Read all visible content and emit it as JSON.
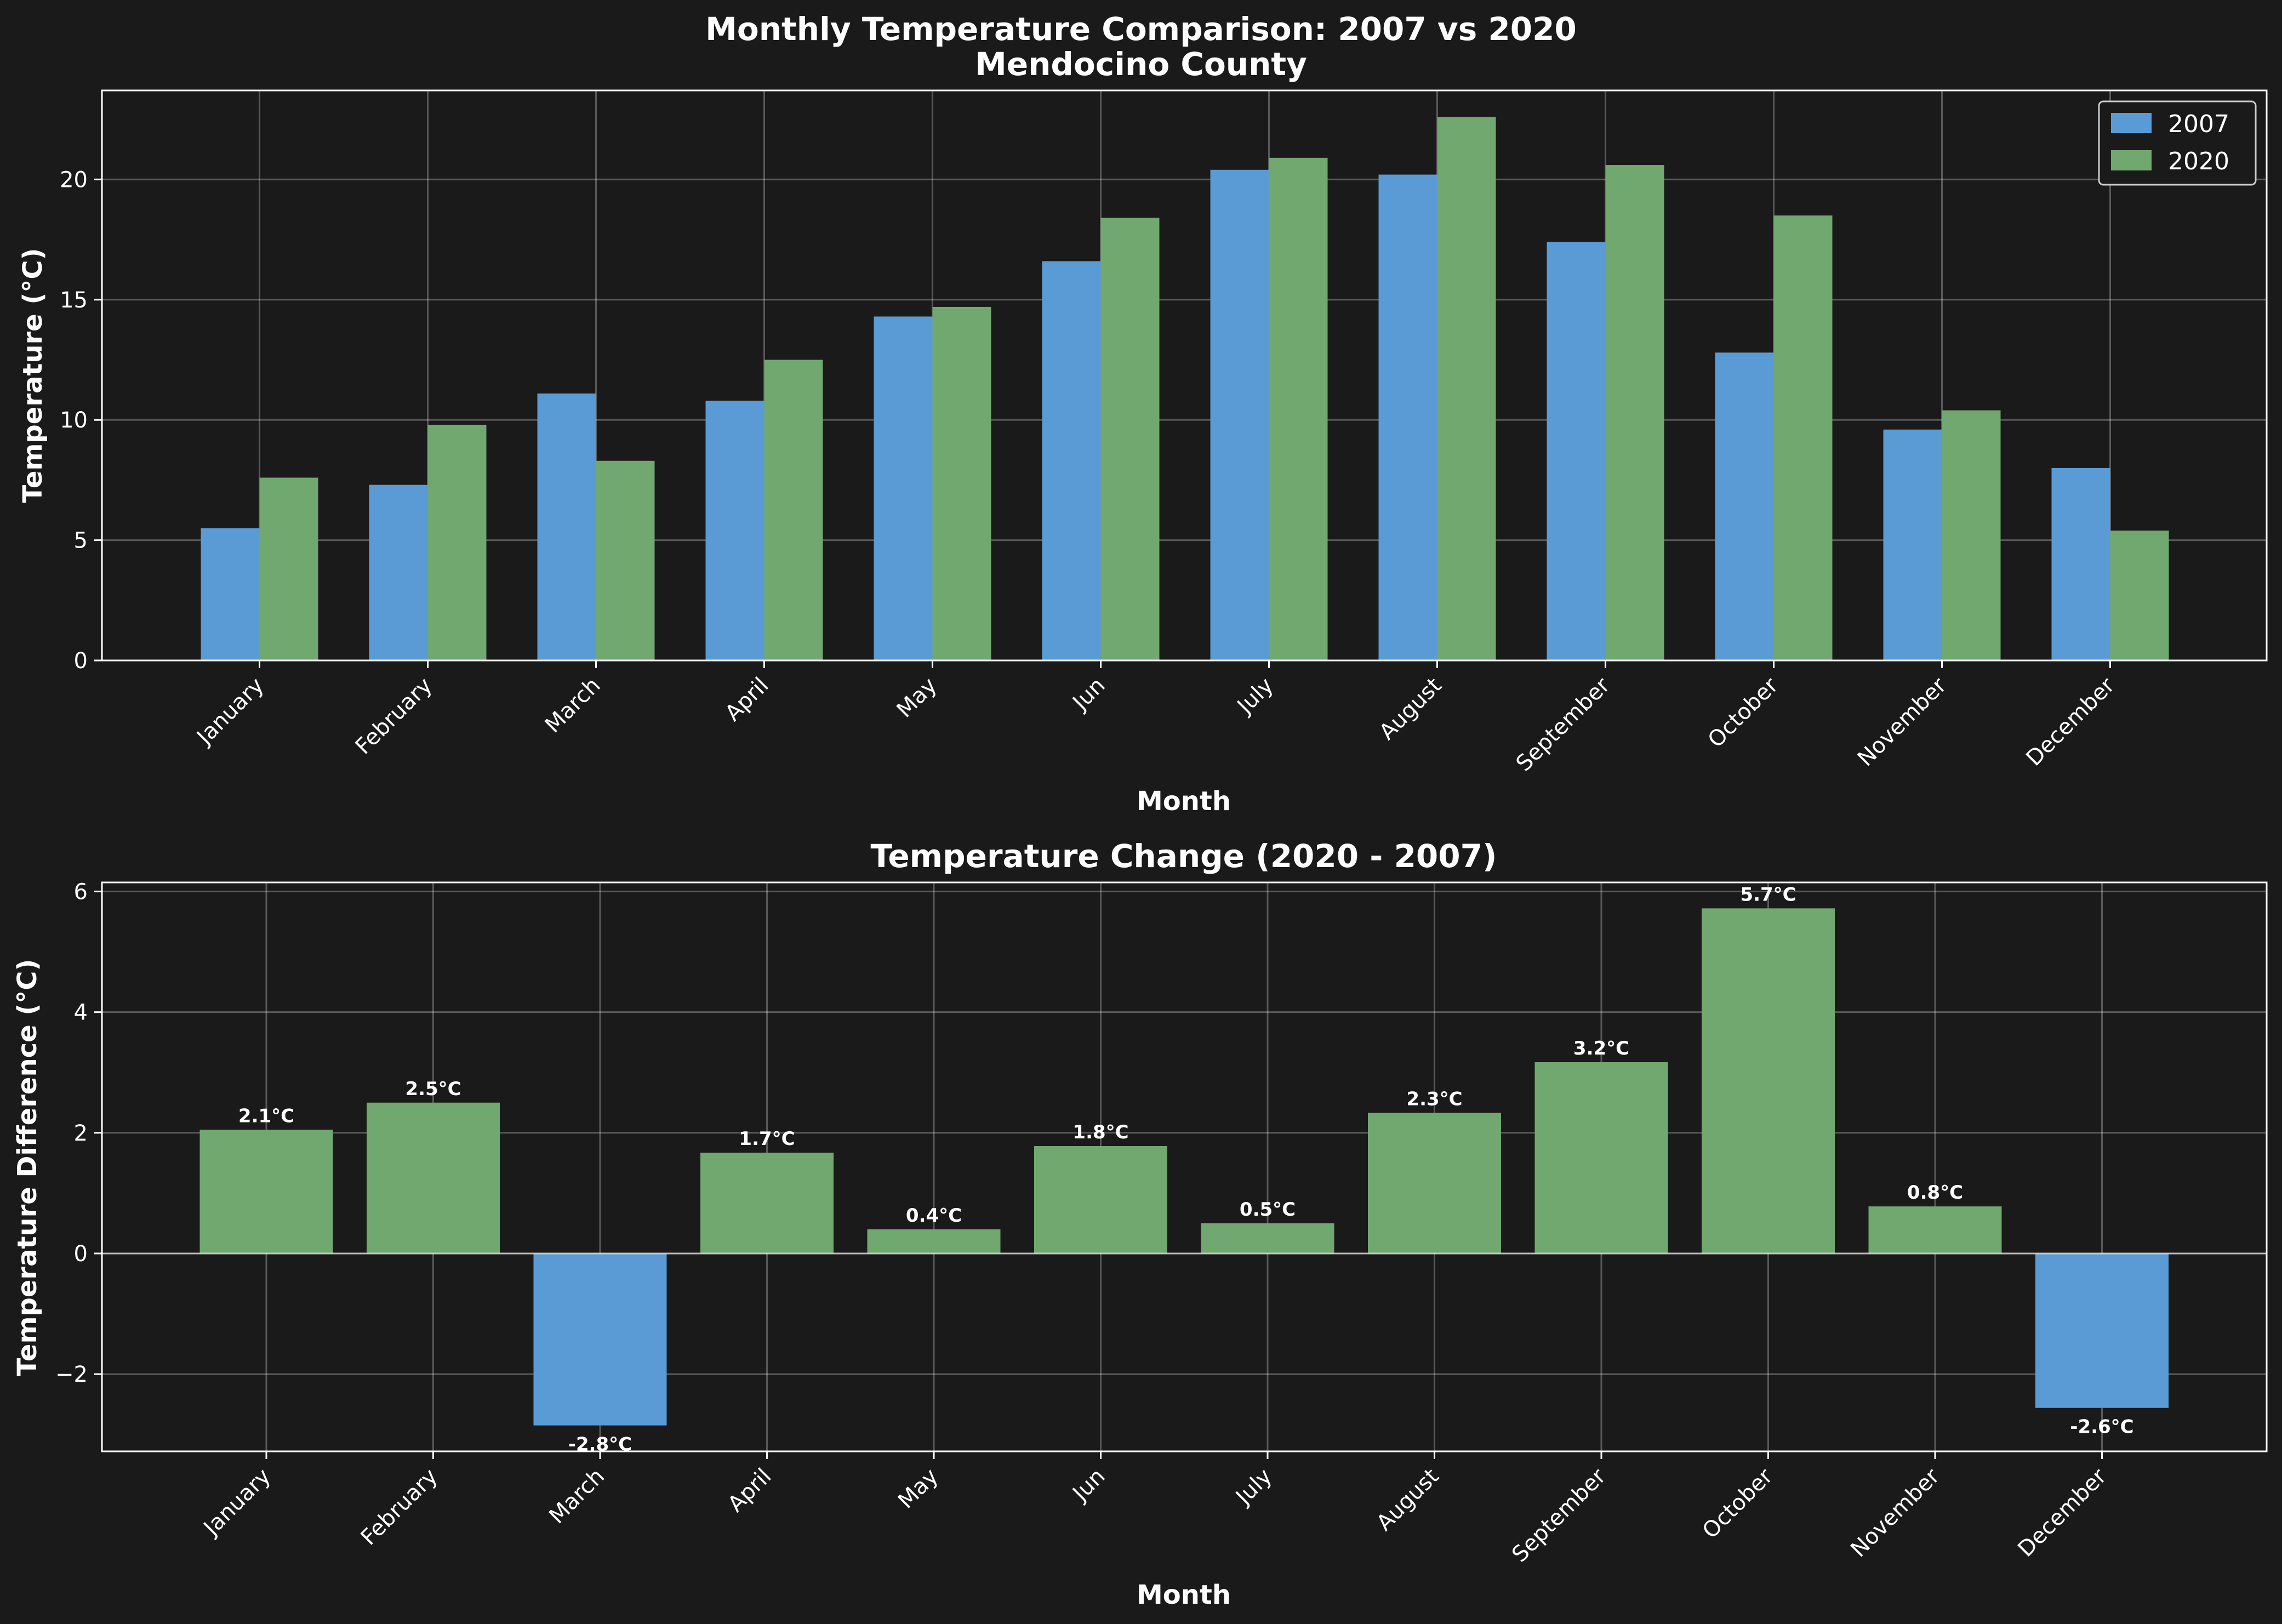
{
  "chart_data": [
    {
      "type": "bar",
      "title": "Monthly Temperature Comparison: 2007 vs 2020",
      "subtitle": "Mendocino County",
      "xlabel": "Month",
      "ylabel": "Temperature (°C)",
      "categories": [
        "January",
        "February",
        "March",
        "April",
        "May",
        "Jun",
        "July",
        "August",
        "September",
        "October",
        "November",
        "December"
      ],
      "series": [
        {
          "name": "2007",
          "color": "#5a9bd5",
          "values": [
            5.5,
            7.3,
            11.1,
            10.8,
            14.3,
            16.6,
            20.4,
            20.2,
            17.4,
            12.8,
            9.6,
            8.0
          ]
        },
        {
          "name": "2020",
          "color": "#70a870",
          "values": [
            7.6,
            9.8,
            8.3,
            12.5,
            14.7,
            18.4,
            20.9,
            22.6,
            20.6,
            18.5,
            10.4,
            5.4
          ]
        }
      ],
      "ylim": [
        0,
        23.7
      ],
      "yticks": [
        "0",
        "5",
        "10",
        "15",
        "20"
      ],
      "grid": true,
      "legend": "top-right"
    },
    {
      "type": "bar",
      "title": "Temperature Change (2020 - 2007)",
      "xlabel": "Month",
      "ylabel": "Temperature Difference (°C)",
      "categories": [
        "January",
        "February",
        "March",
        "April",
        "May",
        "Jun",
        "July",
        "August",
        "September",
        "October",
        "November",
        "December"
      ],
      "values": [
        2.05,
        2.5,
        -2.85,
        1.67,
        0.4,
        1.78,
        0.5,
        2.33,
        3.17,
        5.72,
        0.78,
        -2.56
      ],
      "value_labels": [
        "2.1°C",
        "2.5°C",
        "-2.8°C",
        "1.7°C",
        "0.4°C",
        "1.8°C",
        "0.5°C",
        "2.3°C",
        "3.2°C",
        "5.7°C",
        "0.8°C",
        "-2.6°C"
      ],
      "positive_color": "#70a870",
      "negative_color": "#5a9bd5",
      "ylim": [
        -3.28,
        6.15
      ],
      "yticks": [
        "−2",
        "0",
        "2",
        "4",
        "6"
      ],
      "grid": true
    }
  ]
}
